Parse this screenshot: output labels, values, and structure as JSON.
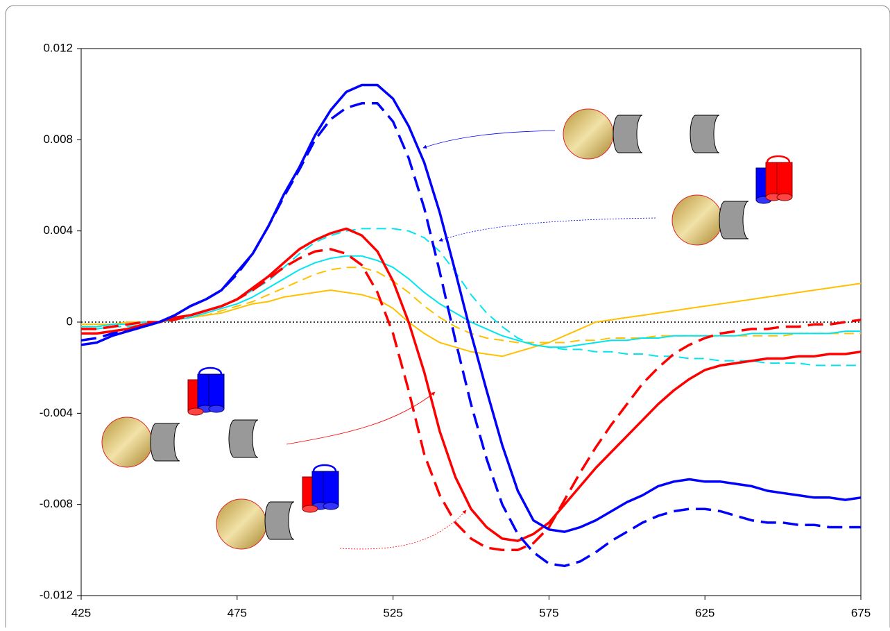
{
  "chart_data": {
    "type": "line",
    "x": [
      425,
      430,
      435,
      440,
      445,
      450,
      455,
      460,
      465,
      470,
      475,
      480,
      485,
      490,
      495,
      500,
      505,
      510,
      515,
      520,
      525,
      530,
      535,
      540,
      545,
      550,
      555,
      560,
      565,
      570,
      575,
      580,
      585,
      590,
      595,
      600,
      605,
      610,
      615,
      620,
      625,
      630,
      635,
      640,
      645,
      650,
      655,
      660,
      665,
      670,
      675
    ],
    "series": [
      {
        "color": "#0000ff",
        "dashed": false,
        "values": [
          -0.001,
          -0.0009,
          -0.0006,
          -0.0004,
          -0.0002,
          0,
          0.0003,
          0.0007,
          0.001,
          0.0014,
          0.0022,
          0.003,
          0.0042,
          0.0056,
          0.0068,
          0.0082,
          0.0093,
          0.0101,
          0.0104,
          0.0104,
          0.0098,
          0.0086,
          0.007,
          0.0048,
          0.0022,
          -0.0005,
          -0.003,
          -0.0054,
          -0.0074,
          -0.0087,
          -0.0091,
          -0.0092,
          -0.009,
          -0.0087,
          -0.0083,
          -0.0079,
          -0.0076,
          -0.0072,
          -0.007,
          -0.0069,
          -0.007,
          -0.007,
          -0.0071,
          -0.0072,
          -0.0074,
          -0.0075,
          -0.0076,
          -0.0077,
          -0.0077,
          -0.0078,
          -0.0077
        ]
      },
      {
        "color": "#0000ff",
        "dashed": true,
        "values": [
          -0.0008,
          -0.0007,
          -0.0005,
          -0.0004,
          -0.0002,
          0,
          0.0003,
          0.0007,
          0.001,
          0.0014,
          0.0021,
          0.003,
          0.0042,
          0.0055,
          0.0067,
          0.008,
          0.0089,
          0.0094,
          0.0096,
          0.0096,
          0.0088,
          0.0072,
          0.005,
          0.0022,
          -0.0008,
          -0.0036,
          -0.006,
          -0.008,
          -0.0093,
          -0.0101,
          -0.0106,
          -0.0107,
          -0.0105,
          -0.0101,
          -0.0096,
          -0.0092,
          -0.0088,
          -0.0085,
          -0.0083,
          -0.0082,
          -0.0082,
          -0.0083,
          -0.0085,
          -0.0087,
          -0.0088,
          -0.0088,
          -0.0089,
          -0.0089,
          -0.009,
          -0.009,
          -0.009
        ]
      },
      {
        "color": "#ff0000",
        "dashed": false,
        "values": [
          -0.0005,
          -0.0005,
          -0.0004,
          -0.0003,
          -0.0001,
          0,
          0.0002,
          0.0003,
          0.0005,
          0.0007,
          0.001,
          0.0015,
          0.002,
          0.0026,
          0.0032,
          0.0036,
          0.0039,
          0.0041,
          0.0038,
          0.0031,
          0.0018,
          0,
          -0.0022,
          -0.0048,
          -0.0068,
          -0.0082,
          -0.009,
          -0.0095,
          -0.0096,
          -0.0093,
          -0.0088,
          -0.008,
          -0.0072,
          -0.0064,
          -0.0057,
          -0.005,
          -0.0043,
          -0.0036,
          -0.003,
          -0.0025,
          -0.0021,
          -0.0019,
          -0.0018,
          -0.0017,
          -0.0016,
          -0.0016,
          -0.0015,
          -0.0015,
          -0.0014,
          -0.0014,
          -0.0013
        ]
      },
      {
        "color": "#ff0000",
        "dashed": true,
        "values": [
          -0.0003,
          -0.0003,
          -0.0002,
          -0.0001,
          0,
          0,
          0.0001,
          0.0003,
          0.0005,
          0.0007,
          0.001,
          0.0014,
          0.0019,
          0.0024,
          0.0028,
          0.0031,
          0.0032,
          0.003,
          0.0025,
          0.0013,
          -0.0005,
          -0.003,
          -0.0058,
          -0.0076,
          -0.0088,
          -0.0095,
          -0.0099,
          -0.01,
          -0.01,
          -0.0097,
          -0.009,
          -0.0078,
          -0.0066,
          -0.0055,
          -0.0045,
          -0.0036,
          -0.0027,
          -0.002,
          -0.0014,
          -0.001,
          -0.0007,
          -0.0005,
          -0.0004,
          -0.0003,
          -0.0003,
          -0.0002,
          -0.0002,
          -0.0001,
          -0.0001,
          0,
          0.0001
        ]
      },
      {
        "color": "#00e5ee",
        "dashed": true,
        "values": [
          -0.0003,
          -0.0003,
          -0.0002,
          -0.0002,
          -0.0001,
          0,
          0.0001,
          0.0003,
          0.0005,
          0.0007,
          0.001,
          0.0014,
          0.0018,
          0.0024,
          0.003,
          0.0035,
          0.0038,
          0.004,
          0.0041,
          0.0041,
          0.0041,
          0.004,
          0.0037,
          0.0031,
          0.0022,
          0.0012,
          0.0004,
          -0.0002,
          -0.0007,
          -0.001,
          -0.0011,
          -0.0012,
          -0.0012,
          -0.0013,
          -0.0013,
          -0.0014,
          -0.0014,
          -0.0015,
          -0.0015,
          -0.0016,
          -0.0016,
          -0.0017,
          -0.0017,
          -0.0017,
          -0.0018,
          -0.0018,
          -0.0018,
          -0.0019,
          -0.0019,
          -0.0019,
          -0.0019
        ]
      },
      {
        "color": "#00e5ee",
        "dashed": false,
        "values": [
          -0.0002,
          -0.0002,
          -0.0001,
          -0.0001,
          0,
          0,
          0.0001,
          0.0002,
          0.0004,
          0.0006,
          0.0008,
          0.0011,
          0.0015,
          0.0019,
          0.0023,
          0.0026,
          0.0028,
          0.0029,
          0.0029,
          0.0027,
          0.0024,
          0.0019,
          0.0013,
          0.0008,
          0.0004,
          0,
          -0.0003,
          -0.0006,
          -0.0008,
          -0.001,
          -0.0011,
          -0.0011,
          -0.001,
          -0.0009,
          -0.0008,
          -0.0008,
          -0.0007,
          -0.0007,
          -0.0006,
          -0.0006,
          -0.0006,
          -0.0006,
          -0.0006,
          -0.0005,
          -0.0005,
          -0.0005,
          -0.0005,
          -0.0005,
          -0.0005,
          -0.0004,
          -0.0004
        ]
      },
      {
        "color": "#ffc000",
        "dashed": true,
        "values": [
          -0.0002,
          -0.0002,
          -0.0001,
          -0.0001,
          0,
          0,
          0.0001,
          0.0002,
          0.0003,
          0.0005,
          0.0007,
          0.0009,
          0.0012,
          0.0015,
          0.0018,
          0.0021,
          0.0023,
          0.0024,
          0.0024,
          0.0022,
          0.0018,
          0.0013,
          0.0007,
          0.0002,
          -0.0002,
          -0.0005,
          -0.0007,
          -0.0008,
          -0.0009,
          -0.0009,
          -0.0009,
          -0.0009,
          -0.0008,
          -0.0008,
          -0.0007,
          -0.0007,
          -0.0007,
          -0.0006,
          -0.0006,
          -0.0006,
          -0.0006,
          -0.0006,
          -0.0006,
          -0.0006,
          -0.0006,
          -0.0006,
          -0.0005,
          -0.0005,
          -0.0005,
          -0.0005,
          -0.0005
        ]
      },
      {
        "color": "#ffc000",
        "dashed": false,
        "values": [
          -0.0001,
          -0.0001,
          -0.0001,
          0,
          0,
          0,
          0.0001,
          0.0002,
          0.0003,
          0.0004,
          0.0006,
          0.0008,
          0.0009,
          0.0011,
          0.0012,
          0.0013,
          0.0014,
          0.0013,
          0.0012,
          0.001,
          0.0006,
          0,
          -0.0005,
          -0.0009,
          -0.0011,
          -0.0013,
          -0.0014,
          -0.0015,
          -0.0013,
          -0.0011,
          -0.0009,
          -0.0006,
          -0.0003,
          0,
          0.0001,
          0.0002,
          0.0003,
          0.0004,
          0.0005,
          0.0006,
          0.0007,
          0.0008,
          0.0009,
          0.001,
          0.0011,
          0.0012,
          0.0013,
          0.0014,
          0.0015,
          0.0016,
          0.0017
        ]
      }
    ],
    "xlim": [
      425,
      675
    ],
    "xticks": [
      425,
      475,
      525,
      575,
      625,
      675
    ],
    "ylim": [
      -0.012,
      0.012
    ],
    "yticks": [
      -0.012,
      -0.008,
      -0.004,
      0,
      0.004,
      0.008,
      0.012
    ]
  }
}
